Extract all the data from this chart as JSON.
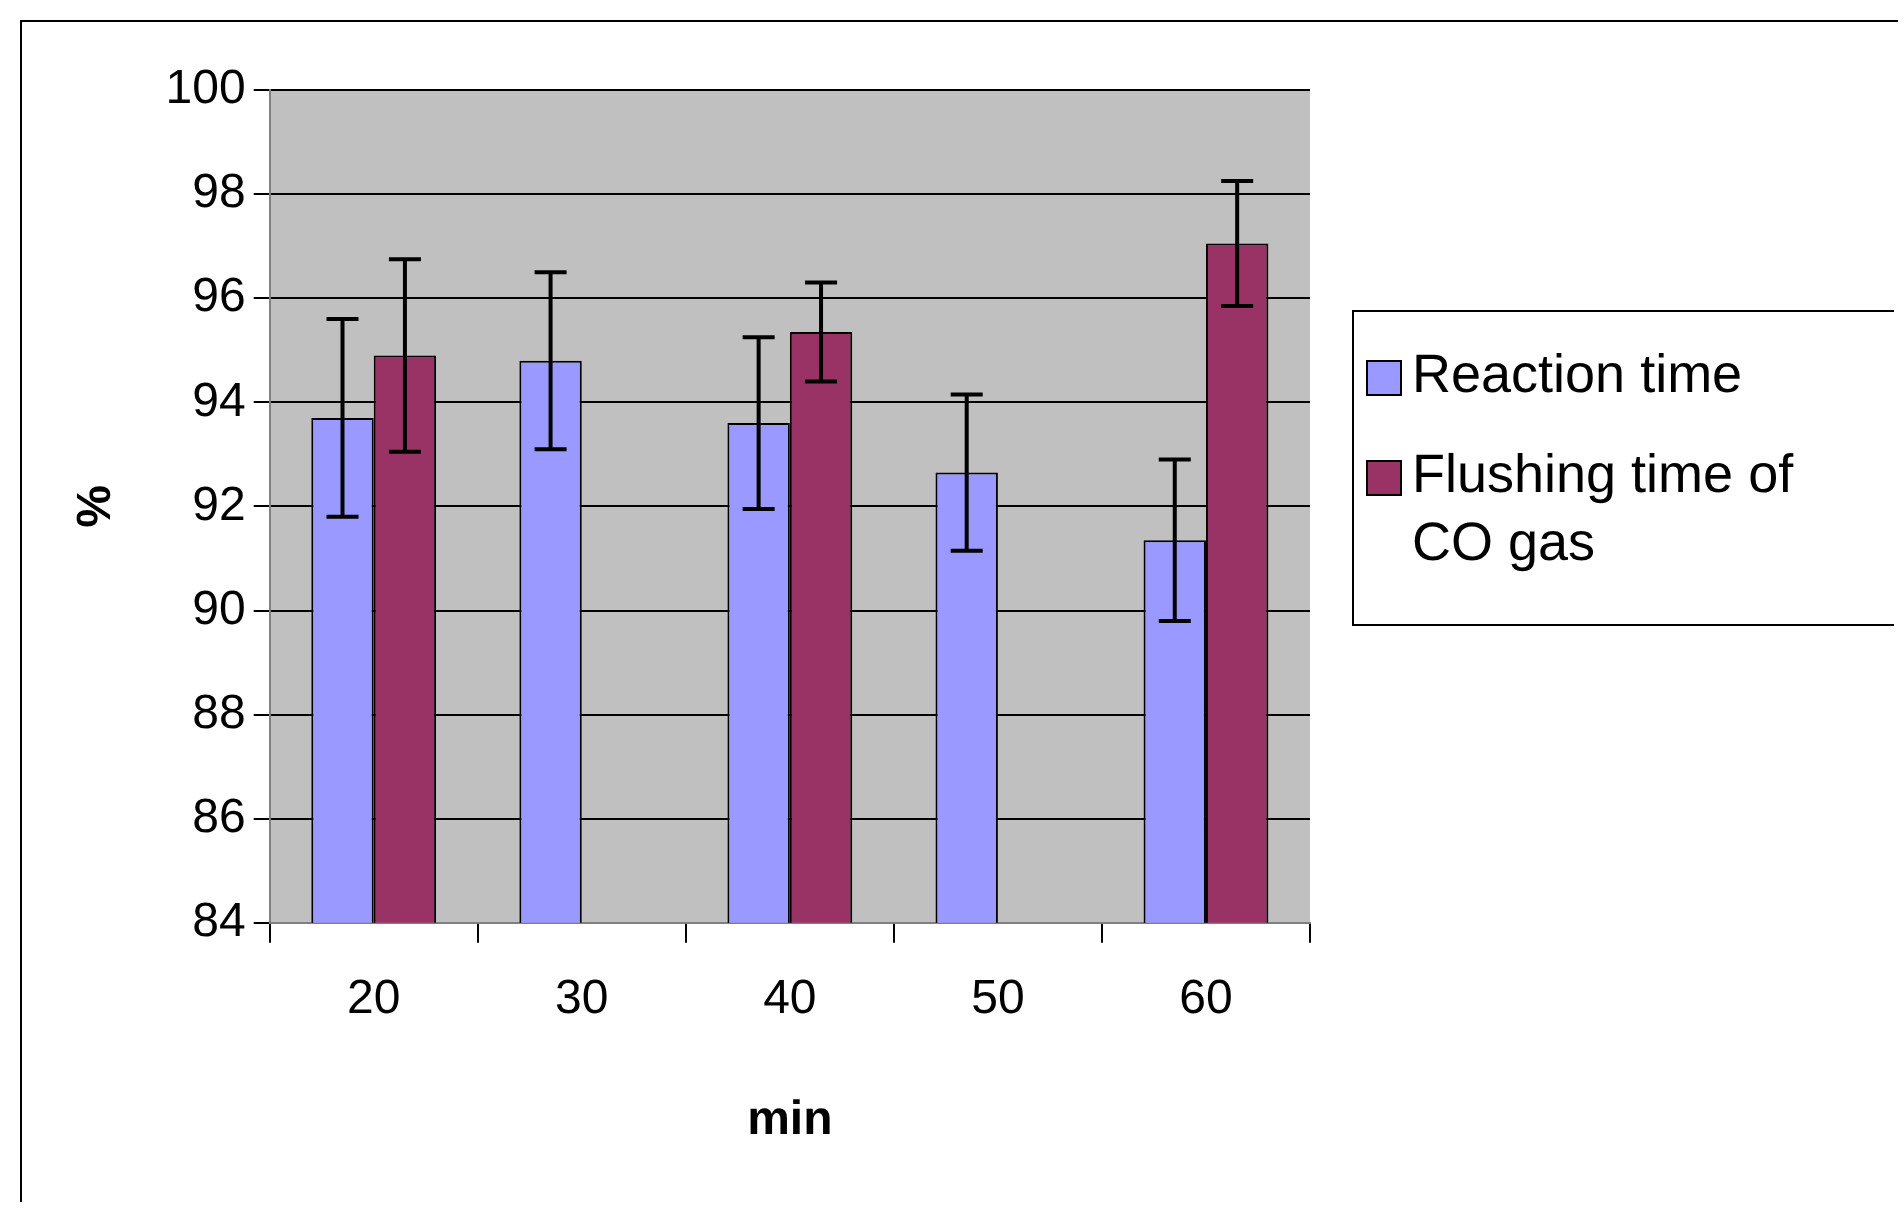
{
  "chart_data": {
    "type": "bar",
    "xlabel": "min",
    "ylabel": "%",
    "categories": [
      "20",
      "30",
      "40",
      "50",
      "60"
    ],
    "series": [
      {
        "name": "Reaction time",
        "color": "#9999ff",
        "values": [
          93.7,
          94.8,
          93.6,
          92.65,
          91.35
        ],
        "errors": [
          1.9,
          1.7,
          1.65,
          1.5,
          1.55
        ]
      },
      {
        "name": "Flushing time of CO gas",
        "color": "#993366",
        "values": [
          94.9,
          null,
          95.35,
          null,
          97.05
        ],
        "errors": [
          1.85,
          null,
          0.95,
          null,
          1.2
        ]
      }
    ],
    "ylim": [
      84,
      100
    ],
    "yticks": [
      84,
      86,
      88,
      90,
      92,
      94,
      96,
      98,
      100
    ],
    "grid": "y",
    "legend": "right"
  }
}
